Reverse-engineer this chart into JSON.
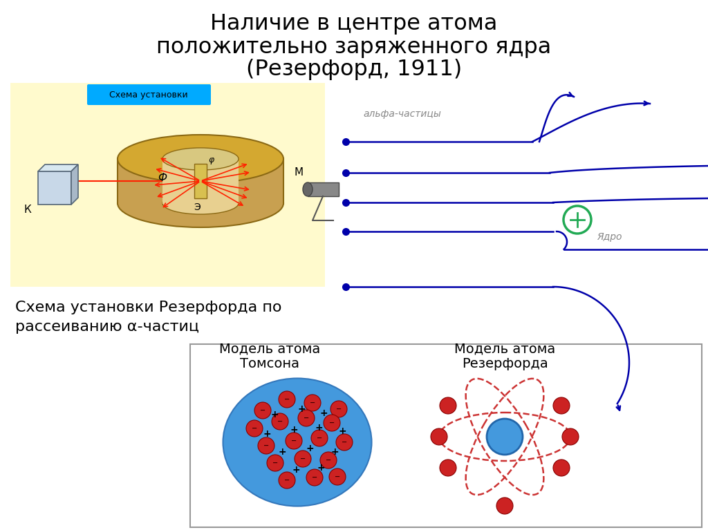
{
  "title_line1": "Наличие в центре атома",
  "title_line2": "положительно заряженного ядра",
  "title_line3": "(Резерфорд, 1911)",
  "alpha_label": "альфа-частицы",
  "nucleus_label": "Ядро",
  "caption_line1": "Схема установки Резерфорда по",
  "caption_line2": "рассеиванию α-частиц",
  "thomson_label": "Модель атома\nТомсона",
  "rutherford_label": "Модель атома\nРезерфорда",
  "bg_color": "#ffffff",
  "blue_color": "#0000AA",
  "nucleus_green": "#22AA55",
  "apparatus_bg": "#FFFACD",
  "blue_box_color": "#00AAFF",
  "drum_face": "#C8A050",
  "drum_top": "#D4A830",
  "drum_edge": "#8B6914",
  "ray_color": "#FF2200",
  "src_color": "#BBDDEE",
  "bottom_box_edge": "#AAAAAA",
  "thomson_blue": "#4499DD",
  "electron_red": "#CC2222",
  "electron_dark": "#880000"
}
